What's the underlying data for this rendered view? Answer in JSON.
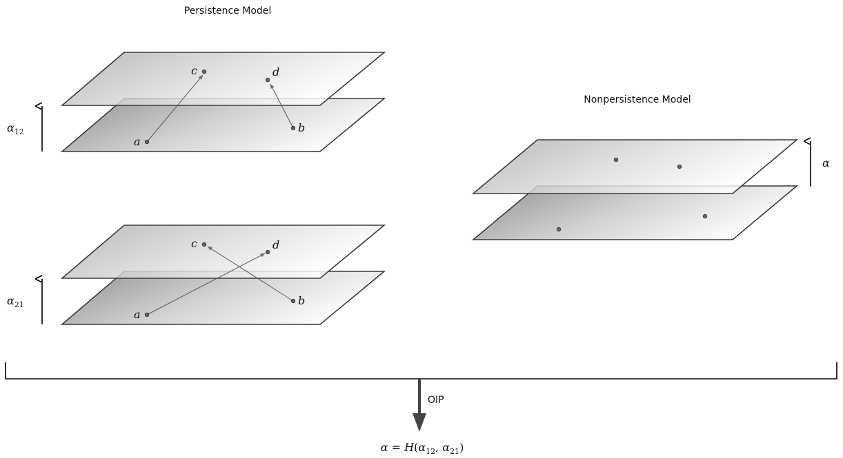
{
  "persistence": {
    "title": "Persistence Model",
    "top_panel": {
      "rate_symbol": "α",
      "rate_subscript": "12",
      "points": {
        "a": "a",
        "b": "b",
        "c": "c",
        "d": "d"
      }
    },
    "bottom_panel": {
      "rate_symbol": "α",
      "rate_subscript": "21",
      "points": {
        "a": "a",
        "b": "b",
        "c": "c",
        "d": "d"
      }
    }
  },
  "nonpersistence": {
    "title": "Nonpersistence Model",
    "rate_symbol": "α"
  },
  "combine": {
    "arrow_label": "OIP",
    "formula": {
      "lhs": "α",
      "equals": " = ",
      "func": "H",
      "open": "(",
      "arg1": "α",
      "arg1_sub": "12",
      "comma": ", ",
      "arg2": "α",
      "arg2_sub": "21",
      "close": ")"
    }
  }
}
